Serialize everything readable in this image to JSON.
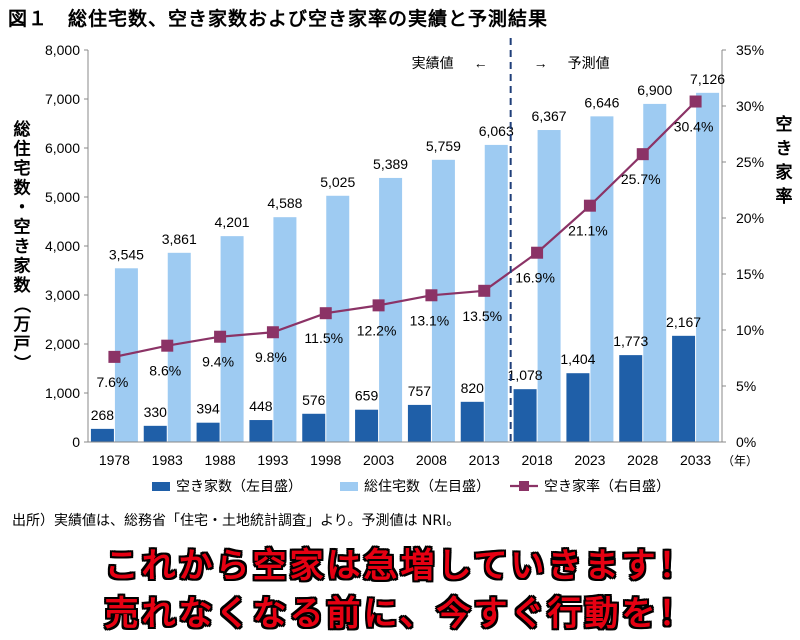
{
  "title": "図１　総住宅数、空き家数および空き家率の実績と予測結果",
  "source": "出所）実績値は、総務省「住宅・土地統計調査」より。予測値は NRI。",
  "banner": {
    "line1": "これから空家は急増していきます！",
    "line2": "売れなくなる前に、今すぐ行動を！"
  },
  "chart_data": {
    "type": "bar",
    "categories": [
      "1978",
      "1983",
      "1988",
      "1993",
      "1998",
      "2003",
      "2008",
      "2013",
      "2018",
      "2023",
      "2028",
      "2033"
    ],
    "x_unit": "（年）",
    "left_axis": {
      "label": "総住宅数・空き家数（万戸）",
      "ylim": [
        0,
        8000
      ],
      "ticks": [
        "0",
        "1,000",
        "2,000",
        "3,000",
        "4,000",
        "5,000",
        "6,000",
        "7,000",
        "8,000"
      ]
    },
    "right_axis": {
      "label": "空き家率",
      "ylim": [
        0,
        35
      ],
      "ticks": [
        "0%",
        "5%",
        "10%",
        "15%",
        "20%",
        "25%",
        "30%",
        "35%"
      ]
    },
    "series": [
      {
        "name": "空き家数（左目盛）",
        "kind": "bar",
        "axis": "left",
        "color": "#1f5fa8",
        "values": [
          268,
          330,
          394,
          448,
          576,
          659,
          757,
          820,
          1078,
          1404,
          1773,
          2167
        ],
        "labels": [
          "268",
          "330",
          "394",
          "448",
          "576",
          "659",
          "757",
          "820",
          "1,078",
          "1,404",
          "1,773",
          "2,167"
        ]
      },
      {
        "name": "総住宅数（左目盛）",
        "kind": "bar",
        "axis": "left",
        "color": "#9ecbf2",
        "values": [
          3545,
          3861,
          4201,
          4588,
          5025,
          5389,
          5759,
          6063,
          6367,
          6646,
          6900,
          7126
        ],
        "labels": [
          "3,545",
          "3,861",
          "4,201",
          "4,588",
          "5,025",
          "5,389",
          "5,759",
          "6,063",
          "6,367",
          "6,646",
          "6,900",
          "7,126"
        ]
      },
      {
        "name": "空き家率（右目盛）",
        "kind": "line",
        "axis": "right",
        "color": "#8b3366",
        "values": [
          7.6,
          8.6,
          9.4,
          9.8,
          11.5,
          12.2,
          13.1,
          13.5,
          16.9,
          21.1,
          25.7,
          30.4
        ],
        "labels": [
          "7.6%",
          "8.6%",
          "9.4%",
          "9.8%",
          "11.5%",
          "12.2%",
          "13.1%",
          "13.5%",
          "16.9%",
          "21.1%",
          "25.7%",
          "30.4%"
        ]
      }
    ],
    "divider": {
      "after_category": "2013",
      "actual_label": "実績値",
      "forecast_label": "予測値",
      "left_arrow": "←",
      "right_arrow": "→"
    },
    "grid": false,
    "legend_position": "bottom"
  }
}
